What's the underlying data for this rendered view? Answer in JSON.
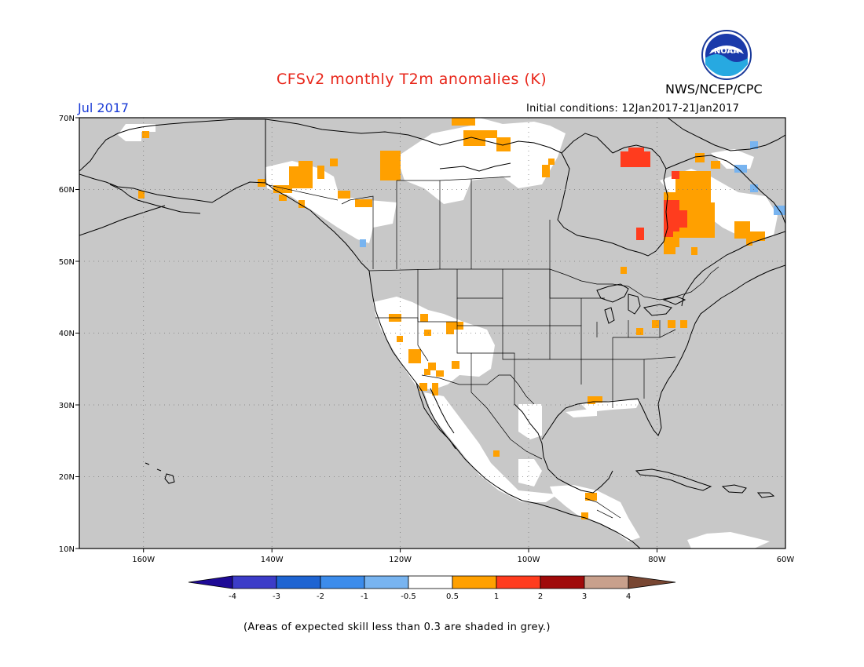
{
  "header": {
    "title": "CFSv2 monthly T2m anomalies (K)",
    "target_month": "Jul 2017",
    "initial_conditions": "Initial conditions: 12Jan2017-21Jan2017",
    "agency": "NWS/NCEP/CPC",
    "logo_text": "NOAA"
  },
  "map": {
    "lat_range": [
      10,
      70
    ],
    "lon_range": [
      -170,
      -60
    ],
    "lat_ticks": [
      "10N",
      "20N",
      "30N",
      "40N",
      "50N",
      "60N",
      "70N"
    ],
    "lon_ticks": [
      "160W",
      "140W",
      "120W",
      "100W",
      "80W",
      "60W"
    ],
    "background_color": "#c8c8c8",
    "regions": [
      {
        "name": "warm-hudson-bay-east",
        "category": "1-2",
        "color": "#ff3c1e",
        "lon": [
          -82,
          -78
        ],
        "lat": [
          52,
          62
        ]
      },
      {
        "name": "warm-quebec",
        "category": "0.5-1",
        "color": "#ffa000",
        "lon": [
          -80,
          -72
        ],
        "lat": [
          51,
          62
        ]
      },
      {
        "name": "warm-labrador",
        "category": "0.5-1",
        "color": "#ffa000",
        "lon": [
          -67,
          -63
        ],
        "lat": [
          53,
          56
        ]
      },
      {
        "name": "warm-alaska-yukon",
        "category": "0.5-1",
        "color": "#ffa000",
        "lon": [
          -140,
          -134
        ],
        "lat": [
          58,
          62
        ]
      },
      {
        "name": "warm-nwt",
        "category": "0.5-1",
        "color": "#ffa000",
        "lon": [
          -122,
          -118
        ],
        "lat": [
          60,
          63
        ]
      },
      {
        "name": "warm-nunavut",
        "category": "0.5-1",
        "color": "#ffa000",
        "lon": [
          -110,
          -104
        ],
        "lat": [
          66,
          68
        ]
      },
      {
        "name": "warm-southwest-us",
        "category": "0.5-1",
        "color": "#ffa000",
        "lon": [
          -118,
          -110
        ],
        "lat": [
          32,
          42
        ]
      },
      {
        "name": "near-normal-west",
        "category": "-0.5-0.5",
        "color": "#ffffff",
        "lon": [
          -124,
          -104
        ],
        "lat": [
          30,
          44
        ]
      },
      {
        "name": "near-normal-canada",
        "category": "-0.5-0.5",
        "color": "#ffffff",
        "lon": [
          -122,
          -100
        ],
        "lat": [
          58,
          68
        ]
      }
    ]
  },
  "colorbar": {
    "labels": [
      "-4",
      "-3",
      "-2",
      "-1",
      "-0.5",
      "0.5",
      "1",
      "2",
      "3",
      "4"
    ],
    "colors": [
      "#1e0a96",
      "#3c3cc8",
      "#1e64d2",
      "#3c8ceb",
      "#78b4f0",
      "#ffffff",
      "#ffa000",
      "#ff3c1e",
      "#a00a0a",
      "#c8a08c",
      "#784632"
    ]
  },
  "footnote": "(Areas of expected skill less than 0.3 are shaded in grey.)"
}
